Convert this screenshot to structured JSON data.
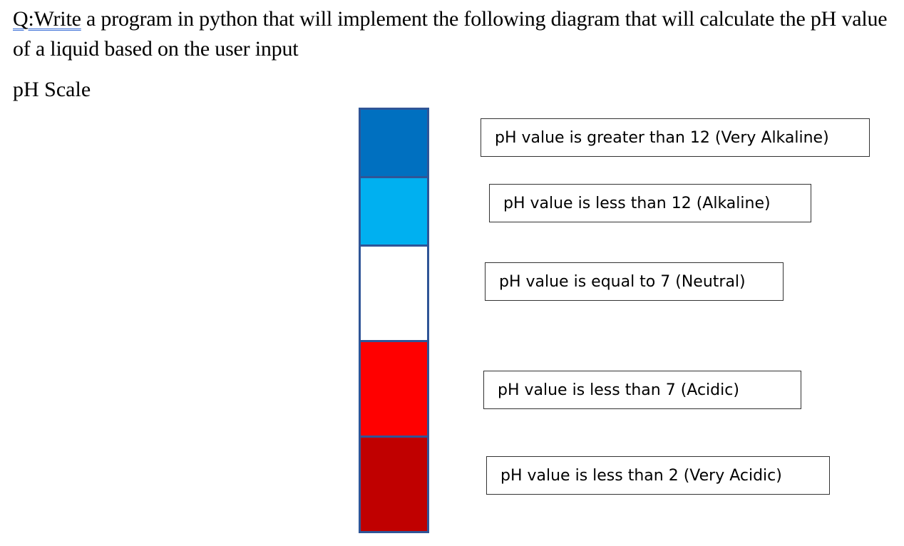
{
  "question": {
    "prefix": "Q:Write",
    "text": " a program in python that will implement the following diagram that will calculate the pH value of a liquid based on the user input"
  },
  "scale_heading": "pH Scale",
  "segments": [
    {
      "name": "very-alkaline",
      "color": "#0070c0"
    },
    {
      "name": "alkaline",
      "color": "#00b0f0"
    },
    {
      "name": "neutral",
      "color": "#ffffff"
    },
    {
      "name": "acidic",
      "color": "#ff0000"
    },
    {
      "name": "very-acidic",
      "color": "#c00000"
    }
  ],
  "labels": [
    "pH value is greater than 12 (Very Alkaline)",
    "pH value is less than 12 (Alkaline)",
    "pH value is equal to 7 (Neutral)",
    "pH value is less than 7 (Acidic)",
    "pH value is less than 2 (Very Acidic)"
  ]
}
